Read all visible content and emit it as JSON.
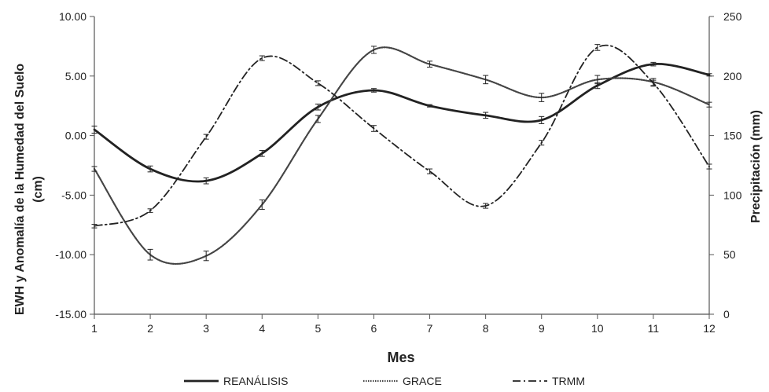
{
  "chart_data": {
    "type": "line",
    "title": "",
    "x": [
      1,
      2,
      3,
      4,
      5,
      6,
      7,
      8,
      9,
      10,
      11,
      12
    ],
    "x_tick_labels": [
      "1",
      "2",
      "3",
      "4",
      "5",
      "6",
      "7",
      "8",
      "9",
      "10",
      "11",
      "12"
    ],
    "xlabel": "Mes",
    "ylabel_left_line1": "EWH y Anomalía de la Humedad del Suelo",
    "ylabel_left_line2": "(cm)",
    "ylabel_right": "Precipitación (mm)",
    "ylim_left": [
      -15,
      10
    ],
    "ylim_right": [
      0,
      250
    ],
    "y_left_tick_labels": [
      "10.00",
      "5.00",
      "0.00",
      "-5.00",
      "-10.00",
      "-15.00"
    ],
    "y_left_tick_values": [
      10,
      5,
      0,
      -5,
      -10,
      -15
    ],
    "y_right_tick_labels": [
      "250",
      "200",
      "150",
      "100",
      "50",
      "0"
    ],
    "y_right_tick_values": [
      250,
      200,
      150,
      100,
      50,
      0
    ],
    "grid": false,
    "legend_position": "bottom",
    "series": [
      {
        "name": "REANÁLISIS",
        "axis": "left",
        "style": "solid",
        "color": "#222222",
        "values": [
          0.5,
          -2.8,
          -3.8,
          -1.5,
          2.4,
          3.8,
          2.5,
          1.7,
          1.3,
          4.2,
          6.0,
          5.1
        ],
        "errors": [
          0.3,
          0.25,
          0.25,
          0.25,
          0.25,
          0.15,
          0.1,
          0.25,
          0.3,
          0.25,
          0.15,
          0.1
        ]
      },
      {
        "name": "GRACE",
        "axis": "left",
        "style": "dotted",
        "color": "#444444",
        "values": [
          -2.8,
          -10.0,
          -10.1,
          -5.8,
          1.4,
          7.2,
          6.0,
          4.7,
          3.2,
          4.7,
          4.5,
          2.6
        ],
        "errors": [
          0.2,
          0.45,
          0.4,
          0.4,
          0.3,
          0.3,
          0.25,
          0.35,
          0.35,
          0.35,
          0.3,
          0.2
        ]
      },
      {
        "name": "TRMM",
        "axis": "right",
        "style": "dashdot",
        "color": "#222222",
        "values": [
          74,
          87,
          149,
          215,
          194,
          156,
          120,
          91,
          144,
          224,
          194,
          124
        ],
        "errors": [
          1.5,
          1.5,
          2,
          2,
          2,
          2.5,
          2,
          2,
          2,
          2.5,
          2.5,
          2
        ]
      }
    ]
  }
}
